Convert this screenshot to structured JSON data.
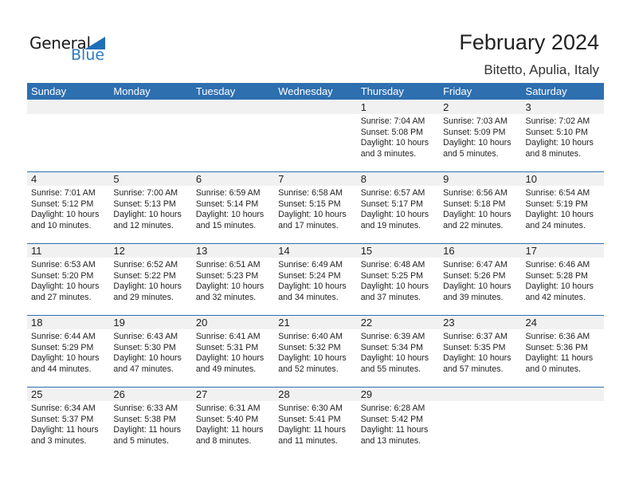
{
  "logo": {
    "line1": "General",
    "line2": "Blue"
  },
  "title": "February 2024",
  "location": "Bitetto, Apulia, Italy",
  "colors": {
    "header": "#2e6fb0",
    "logo_blue": "#2a7ac2",
    "daybar": "#f1f1f1"
  },
  "weekdays": [
    "Sunday",
    "Monday",
    "Tuesday",
    "Wednesday",
    "Thursday",
    "Friday",
    "Saturday"
  ],
  "weeks": [
    [
      null,
      null,
      null,
      null,
      {
        "day": "1",
        "sunrise": "Sunrise: 7:04 AM",
        "sunset": "Sunset: 5:08 PM",
        "daylight1": "Daylight: 10 hours",
        "daylight2": "and 3 minutes."
      },
      {
        "day": "2",
        "sunrise": "Sunrise: 7:03 AM",
        "sunset": "Sunset: 5:09 PM",
        "daylight1": "Daylight: 10 hours",
        "daylight2": "and 5 minutes."
      },
      {
        "day": "3",
        "sunrise": "Sunrise: 7:02 AM",
        "sunset": "Sunset: 5:10 PM",
        "daylight1": "Daylight: 10 hours",
        "daylight2": "and 8 minutes."
      }
    ],
    [
      {
        "day": "4",
        "sunrise": "Sunrise: 7:01 AM",
        "sunset": "Sunset: 5:12 PM",
        "daylight1": "Daylight: 10 hours",
        "daylight2": "and 10 minutes."
      },
      {
        "day": "5",
        "sunrise": "Sunrise: 7:00 AM",
        "sunset": "Sunset: 5:13 PM",
        "daylight1": "Daylight: 10 hours",
        "daylight2": "and 12 minutes."
      },
      {
        "day": "6",
        "sunrise": "Sunrise: 6:59 AM",
        "sunset": "Sunset: 5:14 PM",
        "daylight1": "Daylight: 10 hours",
        "daylight2": "and 15 minutes."
      },
      {
        "day": "7",
        "sunrise": "Sunrise: 6:58 AM",
        "sunset": "Sunset: 5:15 PM",
        "daylight1": "Daylight: 10 hours",
        "daylight2": "and 17 minutes."
      },
      {
        "day": "8",
        "sunrise": "Sunrise: 6:57 AM",
        "sunset": "Sunset: 5:17 PM",
        "daylight1": "Daylight: 10 hours",
        "daylight2": "and 19 minutes."
      },
      {
        "day": "9",
        "sunrise": "Sunrise: 6:56 AM",
        "sunset": "Sunset: 5:18 PM",
        "daylight1": "Daylight: 10 hours",
        "daylight2": "and 22 minutes."
      },
      {
        "day": "10",
        "sunrise": "Sunrise: 6:54 AM",
        "sunset": "Sunset: 5:19 PM",
        "daylight1": "Daylight: 10 hours",
        "daylight2": "and 24 minutes."
      }
    ],
    [
      {
        "day": "11",
        "sunrise": "Sunrise: 6:53 AM",
        "sunset": "Sunset: 5:20 PM",
        "daylight1": "Daylight: 10 hours",
        "daylight2": "and 27 minutes."
      },
      {
        "day": "12",
        "sunrise": "Sunrise: 6:52 AM",
        "sunset": "Sunset: 5:22 PM",
        "daylight1": "Daylight: 10 hours",
        "daylight2": "and 29 minutes."
      },
      {
        "day": "13",
        "sunrise": "Sunrise: 6:51 AM",
        "sunset": "Sunset: 5:23 PM",
        "daylight1": "Daylight: 10 hours",
        "daylight2": "and 32 minutes."
      },
      {
        "day": "14",
        "sunrise": "Sunrise: 6:49 AM",
        "sunset": "Sunset: 5:24 PM",
        "daylight1": "Daylight: 10 hours",
        "daylight2": "and 34 minutes."
      },
      {
        "day": "15",
        "sunrise": "Sunrise: 6:48 AM",
        "sunset": "Sunset: 5:25 PM",
        "daylight1": "Daylight: 10 hours",
        "daylight2": "and 37 minutes."
      },
      {
        "day": "16",
        "sunrise": "Sunrise: 6:47 AM",
        "sunset": "Sunset: 5:26 PM",
        "daylight1": "Daylight: 10 hours",
        "daylight2": "and 39 minutes."
      },
      {
        "day": "17",
        "sunrise": "Sunrise: 6:46 AM",
        "sunset": "Sunset: 5:28 PM",
        "daylight1": "Daylight: 10 hours",
        "daylight2": "and 42 minutes."
      }
    ],
    [
      {
        "day": "18",
        "sunrise": "Sunrise: 6:44 AM",
        "sunset": "Sunset: 5:29 PM",
        "daylight1": "Daylight: 10 hours",
        "daylight2": "and 44 minutes."
      },
      {
        "day": "19",
        "sunrise": "Sunrise: 6:43 AM",
        "sunset": "Sunset: 5:30 PM",
        "daylight1": "Daylight: 10 hours",
        "daylight2": "and 47 minutes."
      },
      {
        "day": "20",
        "sunrise": "Sunrise: 6:41 AM",
        "sunset": "Sunset: 5:31 PM",
        "daylight1": "Daylight: 10 hours",
        "daylight2": "and 49 minutes."
      },
      {
        "day": "21",
        "sunrise": "Sunrise: 6:40 AM",
        "sunset": "Sunset: 5:32 PM",
        "daylight1": "Daylight: 10 hours",
        "daylight2": "and 52 minutes."
      },
      {
        "day": "22",
        "sunrise": "Sunrise: 6:39 AM",
        "sunset": "Sunset: 5:34 PM",
        "daylight1": "Daylight: 10 hours",
        "daylight2": "and 55 minutes."
      },
      {
        "day": "23",
        "sunrise": "Sunrise: 6:37 AM",
        "sunset": "Sunset: 5:35 PM",
        "daylight1": "Daylight: 10 hours",
        "daylight2": "and 57 minutes."
      },
      {
        "day": "24",
        "sunrise": "Sunrise: 6:36 AM",
        "sunset": "Sunset: 5:36 PM",
        "daylight1": "Daylight: 11 hours",
        "daylight2": "and 0 minutes."
      }
    ],
    [
      {
        "day": "25",
        "sunrise": "Sunrise: 6:34 AM",
        "sunset": "Sunset: 5:37 PM",
        "daylight1": "Daylight: 11 hours",
        "daylight2": "and 3 minutes."
      },
      {
        "day": "26",
        "sunrise": "Sunrise: 6:33 AM",
        "sunset": "Sunset: 5:38 PM",
        "daylight1": "Daylight: 11 hours",
        "daylight2": "and 5 minutes."
      },
      {
        "day": "27",
        "sunrise": "Sunrise: 6:31 AM",
        "sunset": "Sunset: 5:40 PM",
        "daylight1": "Daylight: 11 hours",
        "daylight2": "and 8 minutes."
      },
      {
        "day": "28",
        "sunrise": "Sunrise: 6:30 AM",
        "sunset": "Sunset: 5:41 PM",
        "daylight1": "Daylight: 11 hours",
        "daylight2": "and 11 minutes."
      },
      {
        "day": "29",
        "sunrise": "Sunrise: 6:28 AM",
        "sunset": "Sunset: 5:42 PM",
        "daylight1": "Daylight: 11 hours",
        "daylight2": "and 13 minutes."
      },
      null,
      null
    ]
  ]
}
